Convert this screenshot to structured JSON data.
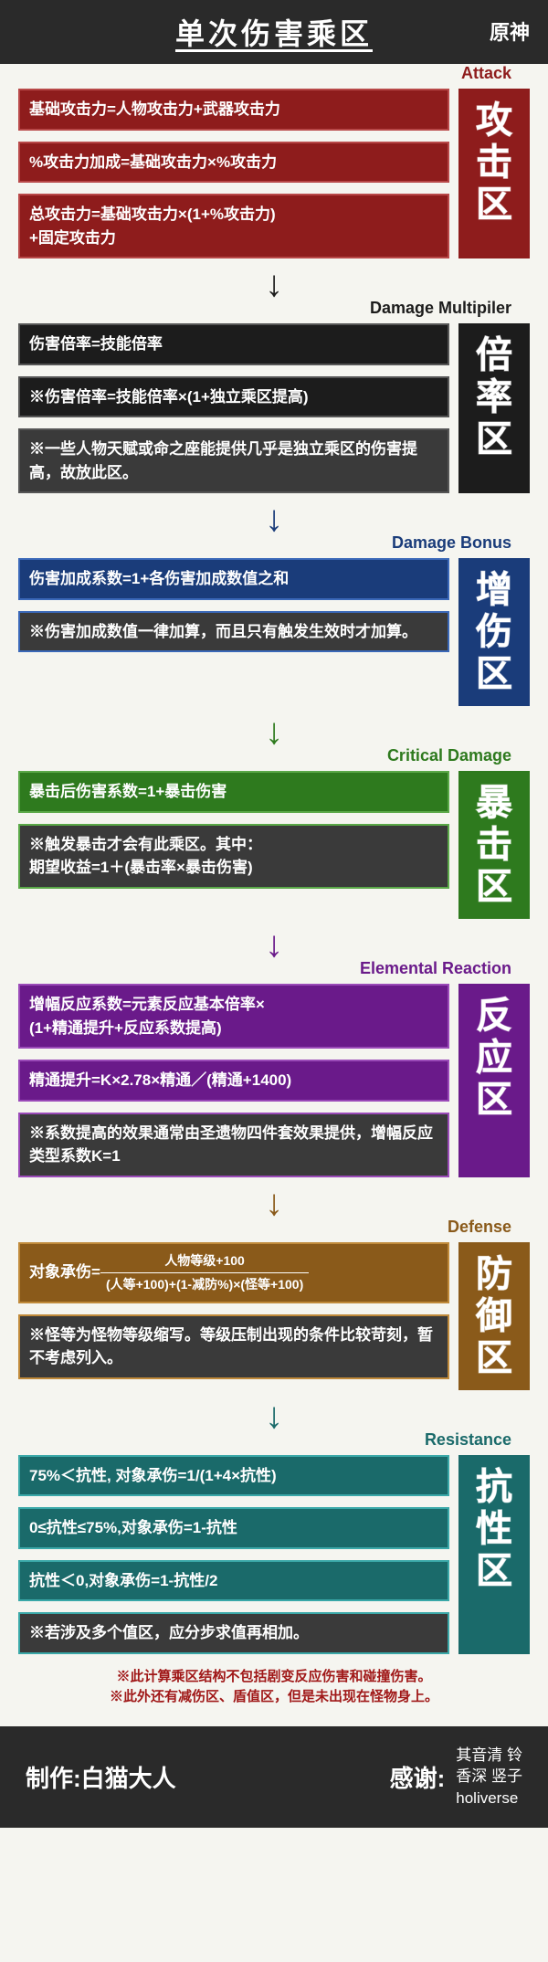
{
  "header": {
    "title": "单次伤害乘区",
    "logo": "原神"
  },
  "colors": {
    "background": "#f5f5f0",
    "header_bg": "#2a2a2a",
    "white": "#ffffff",
    "dark_box": "#3a3a3a",
    "footnote_color": "#a01818"
  },
  "sections": [
    {
      "id": "attack",
      "en_label": "Attack",
      "cn_label": "攻击区",
      "color": "#8e1c1c",
      "accent": "#b84848",
      "boxes": [
        {
          "text": "基础攻击力=人物攻击力+武器攻击力",
          "style": "main"
        },
        {
          "text": "%攻击力加成=基础攻击力×%攻击力",
          "style": "main"
        },
        {
          "text": "总攻击力=基础攻击力×(1+%攻击力)\n+固定攻击力",
          "style": "main"
        }
      ]
    },
    {
      "id": "multiplier",
      "en_label": "Damage Multipiler",
      "cn_label": "倍率区",
      "color": "#1c1c1c",
      "accent": "#555555",
      "boxes": [
        {
          "text": "伤害倍率=技能倍率",
          "style": "main"
        },
        {
          "text": "※伤害倍率=技能倍率×(1+独立乘区提高)",
          "style": "main"
        },
        {
          "text": "※一些人物天赋或命之座能提供几乎是独立乘区的伤害提高，故放此区。",
          "style": "note"
        }
      ]
    },
    {
      "id": "bonus",
      "en_label": "Damage Bonus",
      "cn_label": "增伤区",
      "color": "#1a3c7a",
      "accent": "#3a68b8",
      "boxes": [
        {
          "text": "伤害加成系数=1+各伤害加成数值之和",
          "style": "main"
        },
        {
          "text": "※伤害加成数值一律加算，而且只有触发生效时才加算。",
          "style": "note"
        }
      ]
    },
    {
      "id": "crit",
      "en_label": "Critical Damage",
      "cn_label": "暴击区",
      "color": "#2e7a1e",
      "accent": "#5aa848",
      "boxes": [
        {
          "text": "暴击后伤害系数=1+暴击伤害",
          "style": "main"
        },
        {
          "text": "※触发暴击才会有此乘区。其中：\n期望收益=1＋(暴击率×暴击伤害)",
          "style": "note"
        }
      ]
    },
    {
      "id": "reaction",
      "en_label": "Elemental Reaction",
      "cn_label": "反应区",
      "color": "#6a1a8a",
      "accent": "#9a4ab8",
      "boxes": [
        {
          "text": "增幅反应系数=元素反应基本倍率×\n(1+精通提升+反应系数提高)",
          "style": "main"
        },
        {
          "text": "精通提升=K×2.78×精通／(精通+1400)",
          "style": "main"
        },
        {
          "text": "※系数提高的效果通常由圣遗物四件套效果提供，增幅反应类型系数K=1",
          "style": "note"
        }
      ]
    },
    {
      "id": "defense",
      "en_label": "Defense",
      "cn_label": "防御区",
      "color": "#8a5a1a",
      "accent": "#c08a3a",
      "boxes": [
        {
          "type": "fraction",
          "prefix": "对象承伤=",
          "numerator": "人物等级+100",
          "denominator": "(人等+100)+(1-减防%)×(怪等+100)",
          "style": "main"
        },
        {
          "text": "※怪等为怪物等级缩写。等级压制出现的条件比较苛刻，暂不考虑列入。",
          "style": "note"
        }
      ]
    },
    {
      "id": "resistance",
      "en_label": "Resistance",
      "cn_label": "抗性区",
      "color": "#1a6a6a",
      "accent": "#3aa8a8",
      "boxes": [
        {
          "text": "75%＜抗性, 对象承伤=1/(1+4×抗性)",
          "style": "main"
        },
        {
          "text": "0≤抗性≤75%,对象承伤=1-抗性",
          "style": "main"
        },
        {
          "text": "抗性＜0,对象承伤=1-抗性/2",
          "style": "main"
        },
        {
          "text": "※若涉及多个值区，应分步求值再相加。",
          "style": "note"
        }
      ]
    }
  ],
  "footnote": "※此计算乘区结构不包括剧变反应伤害和碰撞伤害。\n※此外还有减伤区、盾值区，但是未出现在怪物身上。",
  "footer": {
    "author_label": "制作:",
    "author": "白猫大人",
    "thanks_label": "感谢:",
    "thanks_names": [
      "其音清 铃",
      "香深 竖子",
      "holiverse"
    ]
  }
}
